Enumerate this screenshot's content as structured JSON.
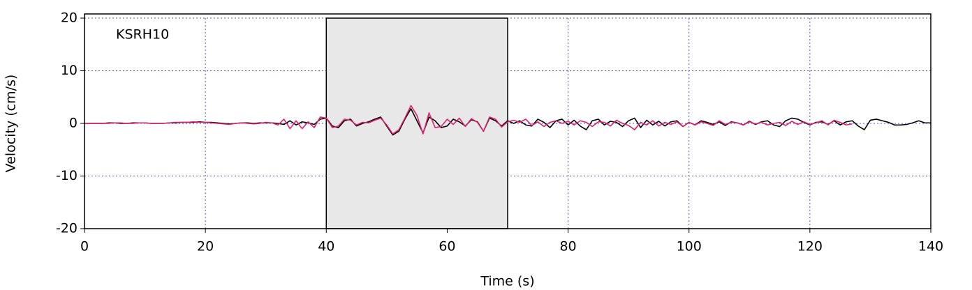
{
  "chart_data": {
    "type": "line",
    "annotation": "KSRH10",
    "xlabel": "Time (s)",
    "ylabel": "Velocity (cm/s)",
    "xlim": [
      0,
      140
    ],
    "ylim": [
      -20,
      20
    ],
    "xticks": [
      0,
      20,
      40,
      60,
      80,
      100,
      120,
      140
    ],
    "yticks": [
      -20,
      -10,
      0,
      10,
      20
    ],
    "grid": true,
    "highlight": [
      40,
      70
    ],
    "highlight_color": "#e8e8e8",
    "x": [
      0,
      1,
      2,
      3,
      4,
      5,
      6,
      7,
      8,
      9,
      10,
      11,
      12,
      13,
      14,
      15,
      16,
      17,
      18,
      19,
      20,
      21,
      22,
      23,
      24,
      25,
      26,
      27,
      28,
      29,
      30,
      31,
      32,
      33,
      34,
      35,
      36,
      37,
      38,
      39,
      40,
      41,
      42,
      43,
      44,
      45,
      46,
      47,
      48,
      49,
      50,
      51,
      52,
      53,
      54,
      55,
      56,
      57,
      58,
      59,
      60,
      61,
      62,
      63,
      64,
      65,
      66,
      67,
      68,
      69,
      70,
      71,
      72,
      73,
      74,
      75,
      76,
      77,
      78,
      79,
      80,
      81,
      82,
      83,
      84,
      85,
      86,
      87,
      88,
      89,
      90,
      91,
      92,
      93,
      94,
      95,
      96,
      97,
      98,
      99,
      100,
      101,
      102,
      103,
      104,
      105,
      106,
      107,
      108,
      109,
      110,
      111,
      112,
      113,
      114,
      115,
      116,
      117,
      118,
      119,
      120,
      121,
      122,
      123,
      124,
      125,
      126,
      127,
      128,
      129,
      130,
      131,
      132,
      133,
      134,
      135,
      136,
      137,
      138,
      139,
      140
    ],
    "series": [
      {
        "color": "#000000",
        "values": [
          0,
          0,
          0,
          0,
          0.1,
          0.1,
          0,
          0,
          0.1,
          0.1,
          0.1,
          0,
          0,
          0,
          0.1,
          0.1,
          0.2,
          0.2,
          0.2,
          0.3,
          0.2,
          0.2,
          0.1,
          0,
          -0.1,
          0,
          0.1,
          0.1,
          0,
          0.1,
          0.1,
          0.1,
          0,
          -0.2,
          0.5,
          -0.3,
          0.3,
          0.1,
          -0.2,
          0.8,
          1.0,
          -0.5,
          -0.8,
          0.5,
          0.8,
          -0.5,
          0,
          0.3,
          0.8,
          1.2,
          -0.5,
          -2.2,
          -1.5,
          0.8,
          2.8,
          0.5,
          -1.8,
          1.2,
          0.5,
          -0.8,
          -0.5,
          0.8,
          0.3,
          -0.5,
          0.7,
          0.3,
          -1.5,
          1.0,
          0.5,
          -0.5,
          0.5,
          0,
          0.5,
          -0.3,
          -0.5,
          0.8,
          0.2,
          -0.8,
          0.5,
          0.8,
          -0.3,
          0.6,
          -0.5,
          -1.2,
          0.5,
          0.8,
          -0.3,
          0.4,
          0.2,
          -0.6,
          0.5,
          1.0,
          -0.8,
          0.6,
          -0.3,
          0.4,
          -0.5,
          0.3,
          0.5,
          -0.6,
          0.2,
          -0.3,
          0.5,
          0.2,
          -0.2,
          0.3,
          -0.4,
          0.3,
          0.1,
          -0.3,
          0.4,
          -0.2,
          0.3,
          0.5,
          -0.3,
          -0.6,
          0.5,
          1.0,
          0.8,
          0.2,
          -0.3,
          0.2,
          0.3,
          -0.2,
          0.5,
          -0.3,
          0.3,
          0.5,
          -0.5,
          -1.2,
          0.6,
          0.8,
          0.5,
          0.2,
          -0.3,
          -0.3,
          -0.2,
          0.1,
          0.5,
          0.1,
          0.1
        ]
      },
      {
        "color": "#e0206e",
        "values": [
          0,
          0,
          0,
          0,
          0,
          0.1,
          0.1,
          0,
          0,
          0.1,
          0.1,
          0,
          0,
          0,
          0.1,
          0.2,
          0.2,
          0.2,
          0.3,
          0.2,
          0.2,
          0.1,
          0,
          -0.1,
          -0.2,
          0,
          0.1,
          0,
          -0.1,
          0,
          0.2,
          0.1,
          -0.3,
          0.8,
          -1.0,
          0.5,
          -1.0,
          0.3,
          -0.8,
          1.2,
          1.0,
          -0.8,
          -0.5,
          0.8,
          0.6,
          -0.3,
          0.2,
          0.1,
          0.6,
          1.0,
          -0.3,
          -2.0,
          -1.2,
          1.0,
          3.4,
          1.5,
          -2.0,
          2.0,
          -0.8,
          -0.6,
          0.8,
          -0.2,
          1.0,
          -0.6,
          0.9,
          0.2,
          -1.5,
          1.2,
          0.8,
          -0.7,
          0.3,
          0.6,
          0.2,
          0.8,
          -0.4,
          0.3,
          -0.6,
          0.2,
          0.5,
          0,
          0.4,
          -0.3,
          0.5,
          0.2,
          -0.6,
          0.3,
          0.2,
          -0.5,
          0.6,
          0,
          -0.4,
          -1.2,
          0.2,
          -0.3,
          0.5,
          -0.5,
          0.2,
          -0.2,
          0.3,
          -0.6,
          0.2,
          -0.3,
          0.3,
          0,
          -0.4,
          0.5,
          -0.2,
          0.2,
          0.1,
          -0.3,
          0.3,
          -0.1,
          0.2,
          -0.3,
          0,
          0.2,
          -0.4,
          0.4,
          -0.2,
          0.3,
          -0.2,
          0.1,
          0.5,
          -0.3,
          0.6,
          0.2,
          -0.3,
          -0.1,
          null,
          null,
          null,
          null,
          null,
          null,
          null,
          null,
          null,
          null,
          null,
          null,
          null
        ]
      }
    ]
  }
}
